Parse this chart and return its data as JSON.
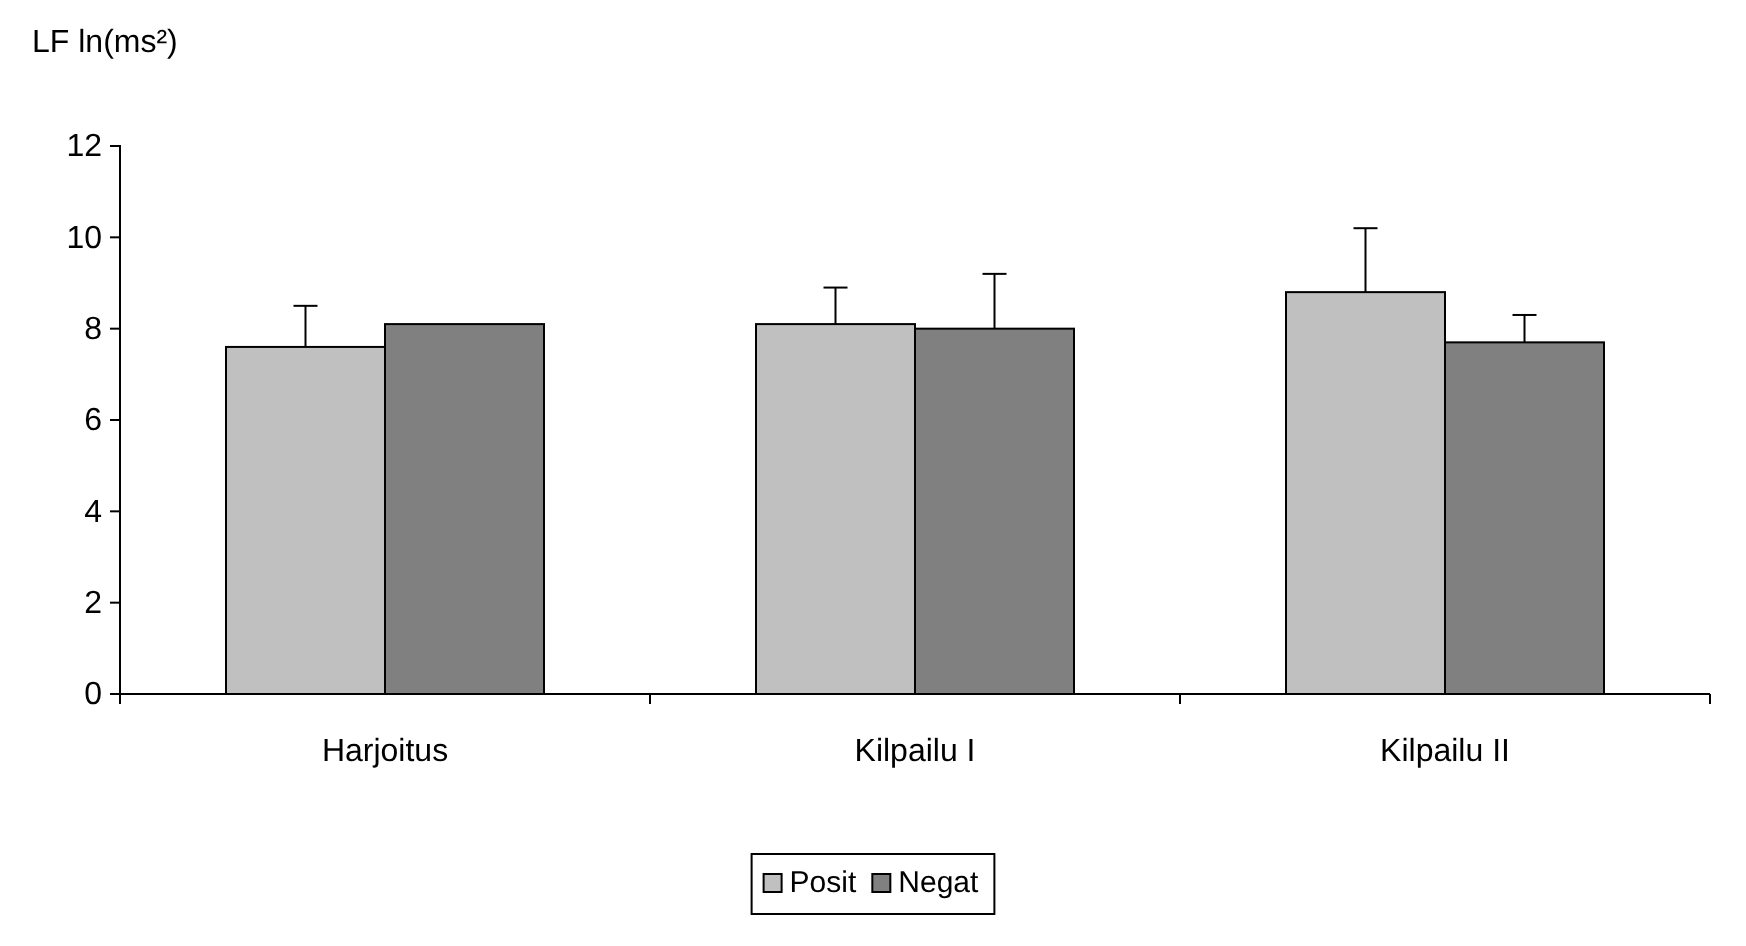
{
  "chart_data": {
    "type": "bar",
    "ylabel": "LF ln(ms²)",
    "categories": [
      "Harjoitus",
      "Kilpailu I",
      "Kilpailu II"
    ],
    "series": [
      {
        "name": "Posit",
        "color": "#c0c0c0",
        "values": [
          7.6,
          8.1,
          8.8
        ],
        "errors": [
          [
            7.6,
            8.5
          ],
          [
            8.1,
            8.9
          ],
          [
            8.8,
            10.2
          ]
        ]
      },
      {
        "name": "Negat",
        "color": "#808080",
        "values": [
          8.1,
          8.0,
          7.7
        ],
        "errors": [
          null,
          [
            8.0,
            9.2
          ],
          [
            7.7,
            8.3
          ]
        ]
      }
    ],
    "ylim": [
      0,
      12
    ],
    "yticks": [
      0,
      2,
      4,
      6,
      8,
      10,
      12
    ],
    "grid": false,
    "legend": "bottom"
  }
}
